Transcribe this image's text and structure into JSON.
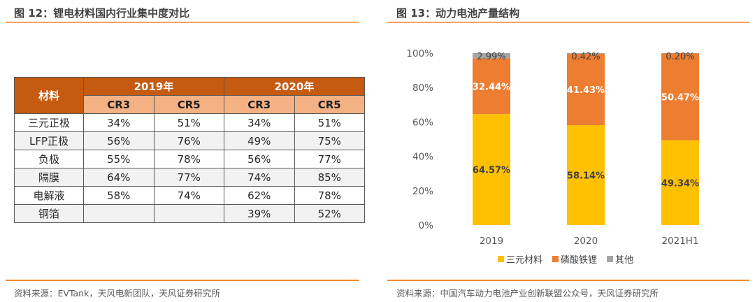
{
  "left": {
    "title": "图 12：锂电材料国内行业集中度对比",
    "source": "资料来源：EVTank，天风电新团队，天风证券研究所",
    "table": {
      "corner_header": "材料",
      "year_headers": [
        "2019年",
        "2020年"
      ],
      "sub_headers": [
        "CR3",
        "CR5",
        "CR3",
        "CR5"
      ],
      "rows": [
        {
          "material": "三元正极",
          "values": [
            "34%",
            "51%",
            "34%",
            "51%"
          ]
        },
        {
          "material": "LFP正极",
          "values": [
            "56%",
            "76%",
            "49%",
            "75%"
          ]
        },
        {
          "material": "负极",
          "values": [
            "55%",
            "78%",
            "56%",
            "77%"
          ]
        },
        {
          "material": "隔膜",
          "values": [
            "64%",
            "77%",
            "74%",
            "85%"
          ]
        },
        {
          "material": "电解液",
          "values": [
            "58%",
            "74%",
            "62%",
            "78%"
          ]
        },
        {
          "material": "铜箔",
          "values": [
            "",
            "",
            "39%",
            "52%"
          ]
        }
      ],
      "colors": {
        "header_dark": "#c55a11",
        "header_light": "#f4b183"
      }
    }
  },
  "right": {
    "title": "图 13：动力电池产量结构",
    "source": "资料来源：中国汽车动力电池产业创新联盟公众号，天风证券研究所"
  },
  "chart_data": {
    "type": "bar",
    "stacked": true,
    "percent": true,
    "title": "图 13：动力电池产量结构",
    "categories": [
      "2019",
      "2020",
      "2021H1"
    ],
    "series": [
      {
        "name": "三元材料",
        "color": "#ffc000",
        "values": [
          64.57,
          58.14,
          49.34
        ],
        "labels": [
          "64.57%",
          "58.14%",
          "49.34%"
        ]
      },
      {
        "name": "磷酸铁锂",
        "color": "#ed7d31",
        "values": [
          32.44,
          41.43,
          50.47
        ],
        "labels": [
          "32.44%",
          "41.43%",
          "50.47%"
        ]
      },
      {
        "name": "其他",
        "color": "#a5a5a5",
        "values": [
          2.99,
          0.42,
          0.2
        ],
        "labels": [
          "2.99%",
          "0.42%",
          "0.20%"
        ]
      }
    ],
    "ylim": [
      0,
      100
    ],
    "yticks": [
      "0%",
      "20%",
      "40%",
      "60%",
      "80%",
      "100%"
    ],
    "grid": false,
    "legend": "bottom",
    "xlabel": "",
    "ylabel": ""
  }
}
